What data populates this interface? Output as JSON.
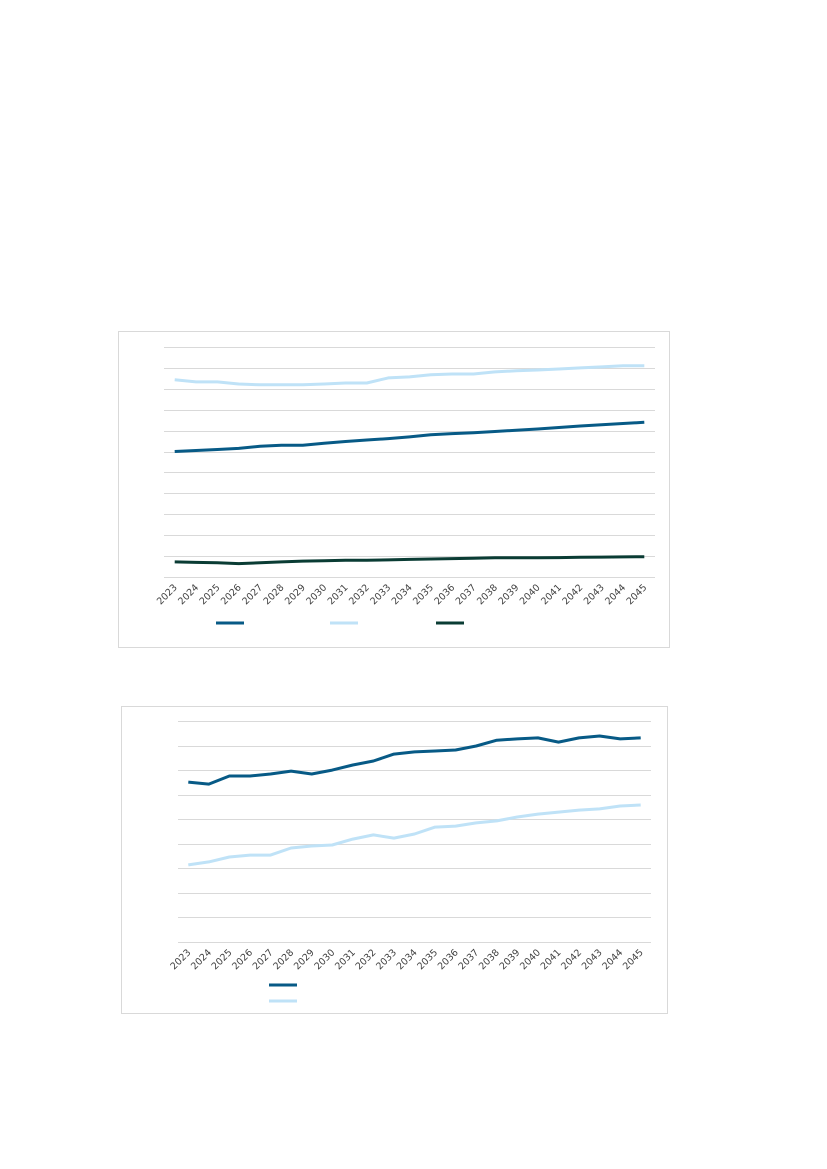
{
  "chart_data": [
    {
      "type": "line",
      "categories": [
        "2023",
        "2024",
        "2025",
        "2026",
        "2027",
        "2028",
        "2029",
        "2030",
        "2031",
        "2032",
        "2033",
        "2034",
        "2035",
        "2036",
        "2037",
        "2038",
        "2039",
        "2040",
        "2041",
        "2042",
        "2043",
        "2044",
        "2045"
      ],
      "ylim": [
        0,
        11
      ],
      "yticks": [
        0,
        1,
        2,
        3,
        4,
        5,
        6,
        7,
        8,
        9,
        10,
        11
      ],
      "grid": true,
      "legend": "bottom",
      "series": [
        {
          "color": "#075a86",
          "values": [
            6.0,
            6.05,
            6.1,
            6.15,
            6.25,
            6.3,
            6.3,
            6.4,
            6.48,
            6.55,
            6.62,
            6.7,
            6.8,
            6.86,
            6.9,
            6.96,
            7.02,
            7.08,
            7.15,
            7.22,
            7.28,
            7.34,
            7.4
          ]
        },
        {
          "color": "#bfe2f7",
          "values": [
            9.43,
            9.33,
            9.33,
            9.23,
            9.19,
            9.19,
            9.19,
            9.23,
            9.28,
            9.28,
            9.52,
            9.57,
            9.67,
            9.71,
            9.71,
            9.81,
            9.86,
            9.9,
            9.95,
            10.0,
            10.05,
            10.1,
            10.1
          ]
        },
        {
          "color": "#0a3c34",
          "values": [
            0.72,
            0.7,
            0.68,
            0.64,
            0.68,
            0.72,
            0.76,
            0.78,
            0.8,
            0.8,
            0.82,
            0.84,
            0.86,
            0.88,
            0.9,
            0.92,
            0.92,
            0.92,
            0.93,
            0.94,
            0.95,
            0.96,
            0.97
          ]
        }
      ]
    },
    {
      "type": "line",
      "categories": [
        "2023",
        "2024",
        "2025",
        "2026",
        "2027",
        "2028",
        "2029",
        "2030",
        "2031",
        "2032",
        "2033",
        "2034",
        "2035",
        "2036",
        "2037",
        "2038",
        "2039",
        "2040",
        "2041",
        "2042",
        "2043",
        "2044",
        "2045"
      ],
      "ylim": [
        0,
        9
      ],
      "yticks": [
        0,
        1,
        2,
        3,
        4,
        5,
        6,
        7,
        8,
        9
      ],
      "grid": true,
      "legend": "bottom-left",
      "series": [
        {
          "color": "#075a86",
          "values": [
            6.51,
            6.43,
            6.76,
            6.76,
            6.84,
            6.96,
            6.84,
            7.0,
            7.21,
            7.37,
            7.65,
            7.74,
            7.78,
            7.82,
            7.98,
            8.22,
            8.27,
            8.31,
            8.14,
            8.31,
            8.39,
            8.27,
            8.31
          ]
        },
        {
          "color": "#bfe2f7",
          "values": [
            3.14,
            3.26,
            3.46,
            3.54,
            3.54,
            3.83,
            3.91,
            3.95,
            4.19,
            4.36,
            4.23,
            4.4,
            4.68,
            4.72,
            4.85,
            4.93,
            5.09,
            5.21,
            5.29,
            5.37,
            5.42,
            5.54,
            5.58
          ]
        }
      ]
    }
  ]
}
